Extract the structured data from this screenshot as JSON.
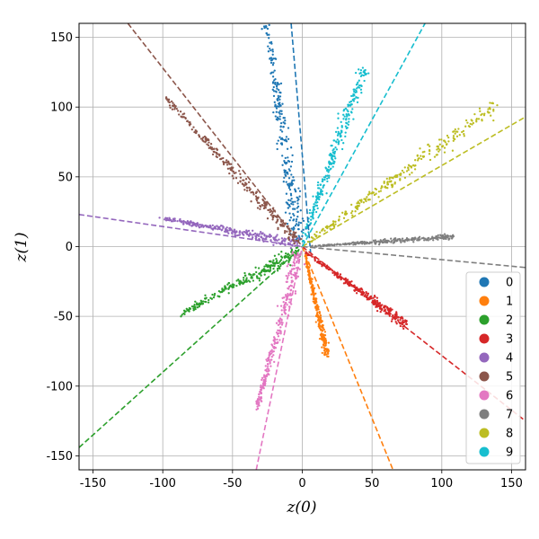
{
  "chart_data": {
    "type": "scatter",
    "xlabel": "z(0)",
    "ylabel": "z(1)",
    "xlim": [
      -160,
      160
    ],
    "ylim": [
      -160,
      160
    ],
    "xticks": [
      -150,
      -100,
      -50,
      0,
      50,
      100,
      150
    ],
    "yticks": [
      -150,
      -100,
      -50,
      0,
      50,
      100,
      150
    ],
    "grid": true,
    "legend": {
      "placement": "lower-right",
      "marker": "circle"
    },
    "series": [
      {
        "name": "0",
        "color": "#1f77b4",
        "start": [
          -26,
          160
        ],
        "end": [
          -2,
          4
        ],
        "spread": 3.2,
        "line": [
          [
            -8,
            160
          ],
          [
            6,
            -5
          ]
        ]
      },
      {
        "name": "1",
        "color": "#ff7f0e",
        "start": [
          2,
          -6
        ],
        "end": [
          18,
          -79
        ],
        "spread": 1.2,
        "line": [
          [
            0,
            0
          ],
          [
            65,
            -160
          ]
        ]
      },
      {
        "name": "2",
        "color": "#2ca02c",
        "start": [
          -88,
          -49
        ],
        "end": [
          -2,
          -3
        ],
        "spread": 2.5,
        "line": [
          [
            -160,
            -144
          ],
          [
            0,
            0
          ]
        ]
      },
      {
        "name": "3",
        "color": "#d62728",
        "start": [
          2,
          -4
        ],
        "end": [
          75,
          -56
        ],
        "spread": 1.8,
        "line": [
          [
            0,
            0
          ],
          [
            160,
            -125
          ]
        ]
      },
      {
        "name": "4",
        "color": "#9467bd",
        "start": [
          -103,
          21
        ],
        "end": [
          -3,
          2
        ],
        "spread": 1.8,
        "line": [
          [
            -160,
            23
          ],
          [
            0,
            0
          ]
        ]
      },
      {
        "name": "5",
        "color": "#8c564b",
        "start": [
          -98,
          107
        ],
        "end": [
          -3,
          3
        ],
        "spread": 2.2,
        "line": [
          [
            -125,
            160
          ],
          [
            0,
            0
          ]
        ]
      },
      {
        "name": "6",
        "color": "#e377c2",
        "start": [
          -33,
          -117
        ],
        "end": [
          -2,
          -5
        ],
        "spread": 2.5,
        "line": [
          [
            -33,
            -160
          ],
          [
            0,
            0
          ]
        ]
      },
      {
        "name": "7",
        "color": "#7f7f7f",
        "start": [
          5,
          0
        ],
        "end": [
          109,
          7
        ],
        "spread": 1.0,
        "line": [
          [
            0,
            0
          ],
          [
            160,
            -15
          ]
        ]
      },
      {
        "name": "8",
        "color": "#bcbd22",
        "start": [
          3,
          3
        ],
        "end": [
          140,
          102
        ],
        "spread": 3.0,
        "line": [
          [
            0,
            0
          ],
          [
            160,
            93
          ]
        ]
      },
      {
        "name": "9",
        "color": "#17becf",
        "start": [
          0,
          3
        ],
        "end": [
          44,
          128
        ],
        "spread": 2.8,
        "line": [
          [
            0,
            0
          ],
          [
            88,
            160
          ]
        ]
      }
    ]
  }
}
